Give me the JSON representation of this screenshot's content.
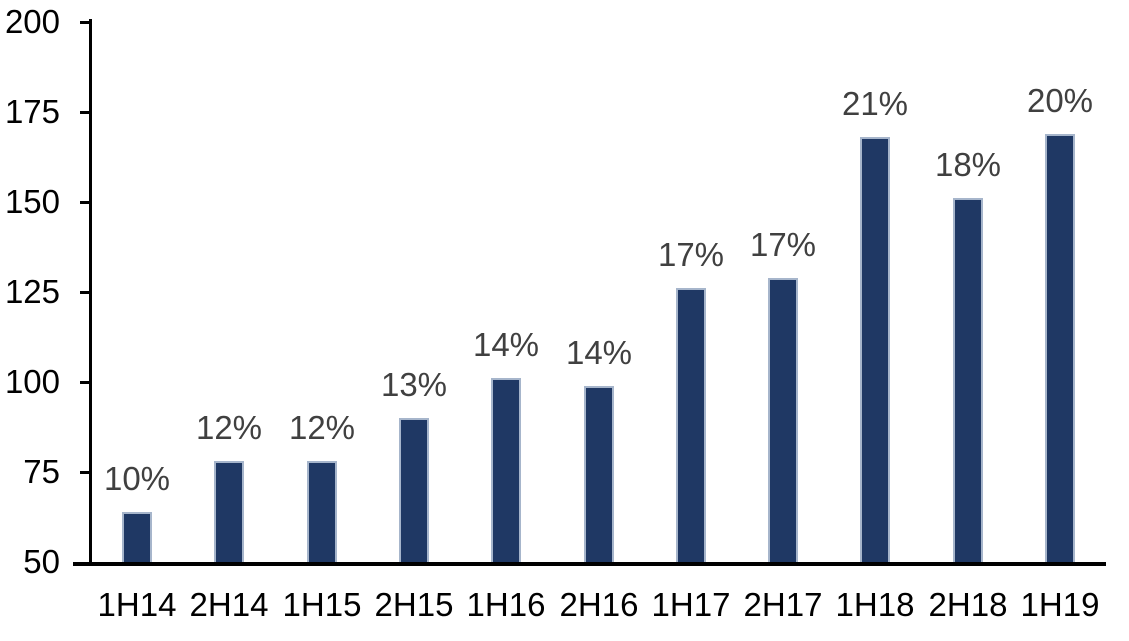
{
  "chart_data": {
    "type": "bar",
    "title": "",
    "xlabel": "",
    "ylabel": "",
    "categories": [
      "1H14",
      "2H14",
      "1H15",
      "2H15",
      "1H16",
      "2H16",
      "1H17",
      "2H17",
      "1H18",
      "2H18",
      "1H19"
    ],
    "values": [
      64,
      78,
      78,
      90,
      101,
      99,
      126,
      129,
      168,
      151,
      169
    ],
    "data_labels": [
      "10%",
      "12%",
      "12%",
      "13%",
      "14%",
      "14%",
      "17%",
      "17%",
      "21%",
      "18%",
      "20%"
    ],
    "ylim": [
      50,
      200
    ],
    "yticks": [
      50,
      75,
      100,
      125,
      150,
      175,
      200
    ],
    "grid": false,
    "legend": false,
    "colors": {
      "bar_fill": "#1f3864",
      "bar_border": "#a6b5cb",
      "data_label": "#404040",
      "axis": "#000000",
      "tick_label": "#000000",
      "background": "#ffffff"
    }
  }
}
